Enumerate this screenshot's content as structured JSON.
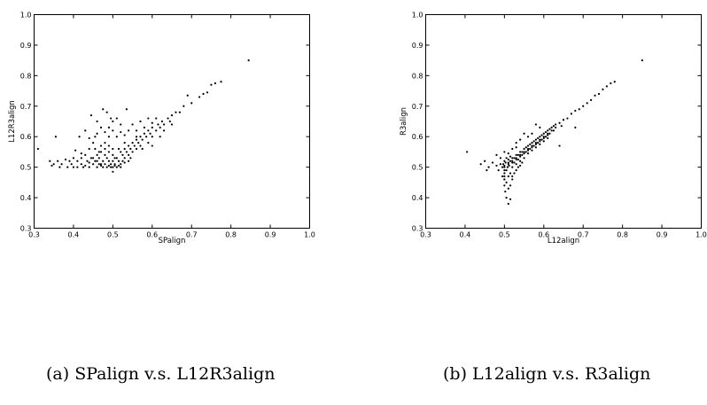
{
  "chart_data": [
    {
      "type": "scatter",
      "xlabel": "SPalign",
      "ylabel": "L12R3align",
      "xlim": [
        0.3,
        1.0
      ],
      "ylim": [
        0.3,
        1.0
      ],
      "xticks": [
        "0.3",
        "0.4",
        "0.5",
        "0.6",
        "0.7",
        "0.8",
        "0.9",
        "1.0"
      ],
      "yticks": [
        "0.3",
        "0.4",
        "0.5",
        "0.6",
        "0.7",
        "0.8",
        "0.9",
        "1.0"
      ],
      "grid": false,
      "caption": "(a) SPalign v.s. L12R3align",
      "points": [
        [
          0.31,
          0.56
        ],
        [
          0.34,
          0.52
        ],
        [
          0.345,
          0.505
        ],
        [
          0.35,
          0.51
        ],
        [
          0.355,
          0.6
        ],
        [
          0.36,
          0.52
        ],
        [
          0.365,
          0.5
        ],
        [
          0.37,
          0.51
        ],
        [
          0.38,
          0.525
        ],
        [
          0.385,
          0.5
        ],
        [
          0.39,
          0.52
        ],
        [
          0.395,
          0.51
        ],
        [
          0.4,
          0.5
        ],
        [
          0.405,
          0.555
        ],
        [
          0.41,
          0.52
        ],
        [
          0.415,
          0.6
        ],
        [
          0.42,
          0.51
        ],
        [
          0.42,
          0.53
        ],
        [
          0.425,
          0.5
        ],
        [
          0.43,
          0.54
        ],
        [
          0.435,
          0.52
        ],
        [
          0.44,
          0.56
        ],
        [
          0.44,
          0.5
        ],
        [
          0.445,
          0.53
        ],
        [
          0.45,
          0.51
        ],
        [
          0.45,
          0.58
        ],
        [
          0.455,
          0.52
        ],
        [
          0.46,
          0.54
        ],
        [
          0.46,
          0.5
        ],
        [
          0.465,
          0.55
        ],
        [
          0.465,
          0.53
        ],
        [
          0.47,
          0.51
        ],
        [
          0.47,
          0.57
        ],
        [
          0.475,
          0.5
        ],
        [
          0.475,
          0.52
        ],
        [
          0.48,
          0.54
        ],
        [
          0.48,
          0.51
        ],
        [
          0.48,
          0.58
        ],
        [
          0.485,
          0.5
        ],
        [
          0.485,
          0.53
        ],
        [
          0.49,
          0.52
        ],
        [
          0.49,
          0.55
        ],
        [
          0.495,
          0.5
        ],
        [
          0.495,
          0.51
        ],
        [
          0.5,
          0.5
        ],
        [
          0.5,
          0.52
        ],
        [
          0.5,
          0.54
        ],
        [
          0.5,
          0.485
        ],
        [
          0.505,
          0.51
        ],
        [
          0.51,
          0.5
        ],
        [
          0.51,
          0.53
        ],
        [
          0.515,
          0.52
        ],
        [
          0.52,
          0.55
        ],
        [
          0.52,
          0.51
        ],
        [
          0.525,
          0.54
        ],
        [
          0.53,
          0.53
        ],
        [
          0.53,
          0.56
        ],
        [
          0.535,
          0.55
        ],
        [
          0.54,
          0.57
        ],
        [
          0.54,
          0.54
        ],
        [
          0.545,
          0.56
        ],
        [
          0.55,
          0.58
        ],
        [
          0.55,
          0.55
        ],
        [
          0.555,
          0.57
        ],
        [
          0.56,
          0.59
        ],
        [
          0.56,
          0.56
        ],
        [
          0.565,
          0.58
        ],
        [
          0.57,
          0.6
        ],
        [
          0.57,
          0.57
        ],
        [
          0.575,
          0.59
        ],
        [
          0.58,
          0.61
        ],
        [
          0.585,
          0.6
        ],
        [
          0.59,
          0.62
        ],
        [
          0.595,
          0.61
        ],
        [
          0.6,
          0.63
        ],
        [
          0.6,
          0.6
        ],
        [
          0.61,
          0.62
        ],
        [
          0.615,
          0.64
        ],
        [
          0.62,
          0.63
        ],
        [
          0.625,
          0.65
        ],
        [
          0.63,
          0.64
        ],
        [
          0.64,
          0.66
        ],
        [
          0.645,
          0.65
        ],
        [
          0.65,
          0.67
        ],
        [
          0.66,
          0.68
        ],
        [
          0.67,
          0.68
        ],
        [
          0.68,
          0.7
        ],
        [
          0.69,
          0.735
        ],
        [
          0.7,
          0.71
        ],
        [
          0.72,
          0.73
        ],
        [
          0.73,
          0.74
        ],
        [
          0.74,
          0.745
        ],
        [
          0.75,
          0.77
        ],
        [
          0.76,
          0.775
        ],
        [
          0.775,
          0.78
        ],
        [
          0.845,
          0.85
        ],
        [
          0.43,
          0.62
        ],
        [
          0.445,
          0.67
        ],
        [
          0.455,
          0.6
        ],
        [
          0.46,
          0.65
        ],
        [
          0.47,
          0.63
        ],
        [
          0.475,
          0.69
        ],
        [
          0.48,
          0.615
        ],
        [
          0.485,
          0.68
        ],
        [
          0.49,
          0.63
        ],
        [
          0.495,
          0.66
        ],
        [
          0.5,
          0.62
        ],
        [
          0.51,
          0.6
        ],
        [
          0.52,
          0.64
        ],
        [
          0.535,
          0.69
        ],
        [
          0.54,
          0.62
        ],
        [
          0.55,
          0.64
        ],
        [
          0.56,
          0.62
        ],
        [
          0.57,
          0.65
        ],
        [
          0.58,
          0.63
        ],
        [
          0.59,
          0.66
        ],
        [
          0.6,
          0.645
        ],
        [
          0.61,
          0.66
        ],
        [
          0.45,
          0.53
        ],
        [
          0.455,
          0.56
        ],
        [
          0.465,
          0.51
        ],
        [
          0.47,
          0.55
        ],
        [
          0.48,
          0.56
        ],
        [
          0.49,
          0.57
        ],
        [
          0.505,
          0.53
        ],
        [
          0.515,
          0.56
        ],
        [
          0.525,
          0.52
        ],
        [
          0.53,
          0.58
        ],
        [
          0.545,
          0.53
        ],
        [
          0.56,
          0.6
        ],
        [
          0.575,
          0.56
        ],
        [
          0.59,
          0.58
        ],
        [
          0.6,
          0.57
        ],
        [
          0.62,
          0.6
        ],
        [
          0.63,
          0.62
        ],
        [
          0.65,
          0.64
        ],
        [
          0.4,
          0.53
        ],
        [
          0.41,
          0.5
        ],
        [
          0.42,
          0.545
        ],
        [
          0.43,
          0.505
        ],
        [
          0.44,
          0.515
        ],
        [
          0.46,
          0.52
        ],
        [
          0.47,
          0.505
        ],
        [
          0.49,
          0.505
        ],
        [
          0.505,
          0.505
        ],
        [
          0.515,
          0.505
        ],
        [
          0.52,
          0.5
        ],
        [
          0.53,
          0.515
        ],
        [
          0.54,
          0.52
        ],
        [
          0.5,
          0.56
        ],
        [
          0.49,
          0.6
        ],
        [
          0.46,
          0.61
        ],
        [
          0.44,
          0.595
        ],
        [
          0.52,
          0.615
        ],
        [
          0.53,
          0.605
        ],
        [
          0.5,
          0.65
        ],
        [
          0.51,
          0.66
        ]
      ]
    },
    {
      "type": "scatter",
      "xlabel": "L12align",
      "ylabel": "R3align",
      "xlim": [
        0.3,
        1.0
      ],
      "ylim": [
        0.3,
        1.0
      ],
      "xticks": [
        "0.3",
        "0.4",
        "0.5",
        "0.6",
        "0.7",
        "0.8",
        "0.9",
        "1.0"
      ],
      "yticks": [
        "0.3",
        "0.4",
        "0.5",
        "0.6",
        "0.7",
        "0.8",
        "0.9",
        "1.0"
      ],
      "grid": false,
      "caption": "(b) L12align v.s. R3align",
      "points": [
        [
          0.405,
          0.55
        ],
        [
          0.44,
          0.51
        ],
        [
          0.45,
          0.52
        ],
        [
          0.455,
          0.49
        ],
        [
          0.46,
          0.5
        ],
        [
          0.47,
          0.515
        ],
        [
          0.48,
          0.505
        ],
        [
          0.485,
          0.49
        ],
        [
          0.49,
          0.51
        ],
        [
          0.495,
          0.5
        ],
        [
          0.495,
          0.47
        ],
        [
          0.5,
          0.48
        ],
        [
          0.5,
          0.505
        ],
        [
          0.5,
          0.46
        ],
        [
          0.5,
          0.44
        ],
        [
          0.502,
          0.42
        ],
        [
          0.505,
          0.49
        ],
        [
          0.505,
          0.4
        ],
        [
          0.51,
          0.51
        ],
        [
          0.51,
          0.38
        ],
        [
          0.515,
          0.395
        ],
        [
          0.515,
          0.52
        ],
        [
          0.52,
          0.5
        ],
        [
          0.52,
          0.53
        ],
        [
          0.525,
          0.515
        ],
        [
          0.53,
          0.54
        ],
        [
          0.53,
          0.51
        ],
        [
          0.535,
          0.525
        ],
        [
          0.54,
          0.55
        ],
        [
          0.54,
          0.52
        ],
        [
          0.545,
          0.54
        ],
        [
          0.55,
          0.56
        ],
        [
          0.55,
          0.53
        ],
        [
          0.555,
          0.55
        ],
        [
          0.56,
          0.57
        ],
        [
          0.56,
          0.545
        ],
        [
          0.565,
          0.56
        ],
        [
          0.57,
          0.58
        ],
        [
          0.57,
          0.555
        ],
        [
          0.575,
          0.57
        ],
        [
          0.58,
          0.59
        ],
        [
          0.58,
          0.565
        ],
        [
          0.585,
          0.58
        ],
        [
          0.59,
          0.6
        ],
        [
          0.59,
          0.575
        ],
        [
          0.595,
          0.59
        ],
        [
          0.6,
          0.61
        ],
        [
          0.6,
          0.585
        ],
        [
          0.605,
          0.6
        ],
        [
          0.61,
          0.62
        ],
        [
          0.61,
          0.595
        ],
        [
          0.615,
          0.61
        ],
        [
          0.62,
          0.63
        ],
        [
          0.625,
          0.62
        ],
        [
          0.63,
          0.64
        ],
        [
          0.64,
          0.645
        ],
        [
          0.645,
          0.635
        ],
        [
          0.65,
          0.655
        ],
        [
          0.66,
          0.66
        ],
        [
          0.67,
          0.675
        ],
        [
          0.68,
          0.685
        ],
        [
          0.69,
          0.69
        ],
        [
          0.7,
          0.7
        ],
        [
          0.71,
          0.71
        ],
        [
          0.72,
          0.72
        ],
        [
          0.73,
          0.735
        ],
        [
          0.74,
          0.74
        ],
        [
          0.75,
          0.755
        ],
        [
          0.76,
          0.765
        ],
        [
          0.77,
          0.775
        ],
        [
          0.78,
          0.78
        ],
        [
          0.85,
          0.85
        ],
        [
          0.48,
          0.54
        ],
        [
          0.49,
          0.53
        ],
        [
          0.5,
          0.55
        ],
        [
          0.51,
          0.545
        ],
        [
          0.52,
          0.56
        ],
        [
          0.53,
          0.565
        ],
        [
          0.5,
          0.52
        ],
        [
          0.505,
          0.53
        ],
        [
          0.51,
          0.525
        ],
        [
          0.515,
          0.535
        ],
        [
          0.52,
          0.515
        ],
        [
          0.525,
          0.53
        ],
        [
          0.53,
          0.525
        ],
        [
          0.535,
          0.54
        ],
        [
          0.54,
          0.535
        ],
        [
          0.545,
          0.55
        ],
        [
          0.55,
          0.545
        ],
        [
          0.555,
          0.565
        ],
        [
          0.56,
          0.56
        ],
        [
          0.565,
          0.575
        ],
        [
          0.57,
          0.57
        ],
        [
          0.575,
          0.585
        ],
        [
          0.58,
          0.58
        ],
        [
          0.585,
          0.595
        ],
        [
          0.59,
          0.59
        ],
        [
          0.595,
          0.605
        ],
        [
          0.6,
          0.6
        ],
        [
          0.605,
          0.615
        ],
        [
          0.61,
          0.61
        ],
        [
          0.615,
          0.625
        ],
        [
          0.62,
          0.62
        ],
        [
          0.625,
          0.635
        ],
        [
          0.63,
          0.63
        ],
        [
          0.64,
          0.57
        ],
        [
          0.68,
          0.63
        ],
        [
          0.58,
          0.64
        ],
        [
          0.59,
          0.63
        ],
        [
          0.57,
          0.61
        ],
        [
          0.56,
          0.6
        ],
        [
          0.55,
          0.61
        ],
        [
          0.54,
          0.59
        ],
        [
          0.53,
          0.58
        ],
        [
          0.5,
          0.46
        ],
        [
          0.505,
          0.45
        ],
        [
          0.51,
          0.43
        ],
        [
          0.515,
          0.44
        ],
        [
          0.52,
          0.47
        ],
        [
          0.525,
          0.48
        ],
        [
          0.53,
          0.49
        ],
        [
          0.535,
          0.5
        ],
        [
          0.54,
          0.505
        ],
        [
          0.545,
          0.515
        ],
        [
          0.5,
          0.49
        ],
        [
          0.497,
          0.51
        ],
        [
          0.503,
          0.515
        ],
        [
          0.508,
          0.5
        ],
        [
          0.512,
          0.505
        ],
        [
          0.5,
          0.5
        ],
        [
          0.51,
          0.515
        ],
        [
          0.52,
          0.52
        ],
        [
          0.53,
          0.53
        ],
        [
          0.54,
          0.54
        ],
        [
          0.55,
          0.55
        ],
        [
          0.56,
          0.555
        ],
        [
          0.57,
          0.565
        ],
        [
          0.58,
          0.575
        ],
        [
          0.59,
          0.585
        ],
        [
          0.6,
          0.595
        ],
        [
          0.61,
          0.605
        ],
        [
          0.52,
          0.46
        ],
        [
          0.51,
          0.47
        ],
        [
          0.5,
          0.47
        ],
        [
          0.515,
          0.48
        ]
      ]
    }
  ]
}
